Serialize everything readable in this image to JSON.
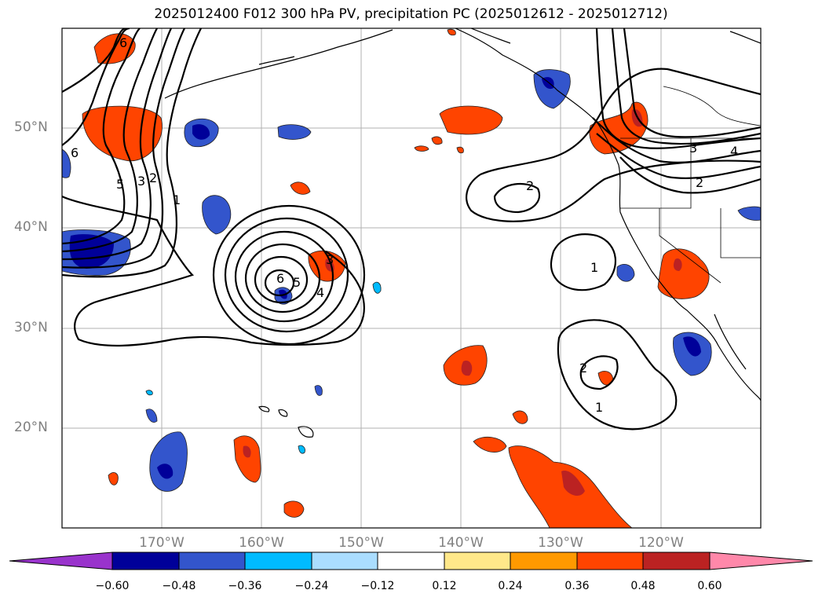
{
  "title": "2025012400 F012 300 hPa PV, precipitation PC (2025012612 - 2025012712)",
  "lat_labels": [
    {
      "label": "50°N",
      "deg": 50
    },
    {
      "label": "40°N",
      "deg": 40
    },
    {
      "label": "30°N",
      "deg": 30
    },
    {
      "label": "20°N",
      "deg": 20
    }
  ],
  "lon_labels": [
    {
      "label": "170°W",
      "deg": -170
    },
    {
      "label": "160°W",
      "deg": -160
    },
    {
      "label": "150°W",
      "deg": -150
    },
    {
      "label": "140°W",
      "deg": -140
    },
    {
      "label": "130°W",
      "deg": -130
    },
    {
      "label": "120°W",
      "deg": -120
    }
  ],
  "colorbar": {
    "ticks": [
      "−0.60",
      "−0.48",
      "−0.36",
      "−0.24",
      "−0.12",
      "0.12",
      "0.24",
      "0.36",
      "0.48",
      "0.60"
    ],
    "colors": [
      "#9933cc",
      "#000099",
      "#3355cc",
      "#00bbff",
      "#aaddff",
      "#ffffff",
      "#ffe88a",
      "#ff9900",
      "#ff4400",
      "#bb2222",
      "#ff88aa"
    ]
  },
  "contour_labels": [
    "6",
    "6",
    "5",
    "3",
    "2",
    "1",
    "6",
    "5",
    "4",
    "3",
    "2",
    "1",
    "2",
    "1",
    "3",
    "4",
    "2"
  ]
}
